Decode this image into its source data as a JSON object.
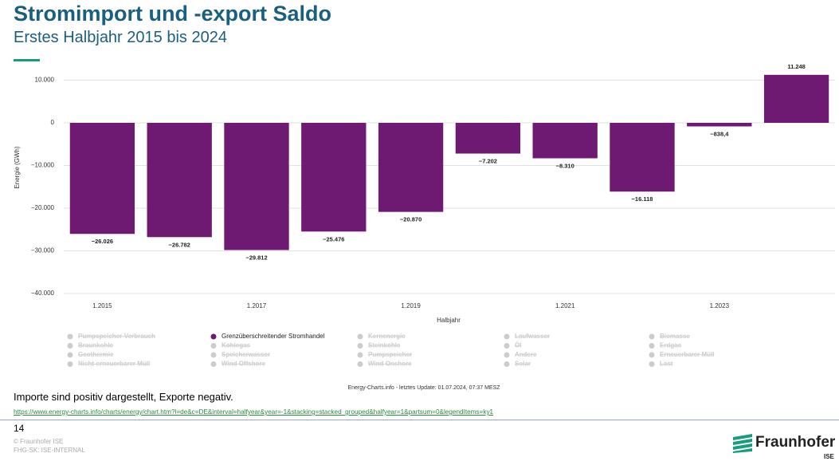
{
  "chart_data": {
    "type": "bar",
    "title": "Stromimport und -export Saldo",
    "subtitle": "Erstes Halbjahr 2015 bis 2024",
    "y_label": "Energie (GWh)",
    "x_label": "Halbjahr",
    "categories": [
      "1.2015",
      null,
      "1.2017",
      null,
      "1.2019",
      null,
      "1.2021",
      null,
      "1.2023",
      null
    ],
    "series": [
      {
        "name": "Grenzüberschreitender Stromhandel",
        "color": "#6e1a72",
        "values": [
          -26026,
          -26782,
          -29812,
          -25476,
          -20870,
          -7202,
          -8310,
          -16118,
          -838.4,
          11248
        ],
        "value_labels": [
          "−26.026",
          "−26.782",
          "−29.812",
          "−25.476",
          "−20.870",
          "−7.202",
          "−8.310",
          "−16.118",
          "−838,4",
          "11.248"
        ]
      }
    ],
    "hidden_series": [
      "Pumpspeicher-Verbrauch",
      "Braunkohle",
      "Geothermie",
      "Nicht-erneuerbarer Müll",
      "Kohlegas",
      "Speicherwasser",
      "Wind Offshore",
      "Kernenergie",
      "Steinkohle",
      "Pumpspeicher",
      "Wind Onshore",
      "Laufwasser",
      "Öl",
      "Andere",
      "Solar",
      "Biomasse",
      "Erdgas",
      "Erneuerbarer Müll",
      "Last"
    ],
    "hidden_color": "#cccccc",
    "ylim": [
      -40000,
      12000
    ],
    "yticks": [
      {
        "value": 10000,
        "label": "10.000"
      },
      0,
      {
        "value": -10000,
        "label": "−10.000"
      },
      {
        "value": -20000,
        "label": "−20.000"
      },
      {
        "value": -30000,
        "label": "−30.000"
      },
      {
        "value": -40000,
        "label": "−40.000"
      }
    ],
    "grid": true,
    "source": "Energy-Charts.info - letztes Update: 01.07.2024, 07:37 MESZ"
  },
  "footer": {
    "note": "Importe sind positiv dargestellt, Exporte negativ.",
    "link": "https://www.energy-charts.info/charts/energy/chart.htm?l=de&c=DE&interval=halfyear&year=-1&stacking=stacked_grouped&halfyear=1&partsum=0&legendItems=ky1",
    "page_number": "14",
    "copyright": "© Fraunhofer ISE",
    "classification": "FHG-SK: ISE-INTERNAL",
    "logo": "Fraunhofer",
    "logo_sub": "ISE"
  }
}
